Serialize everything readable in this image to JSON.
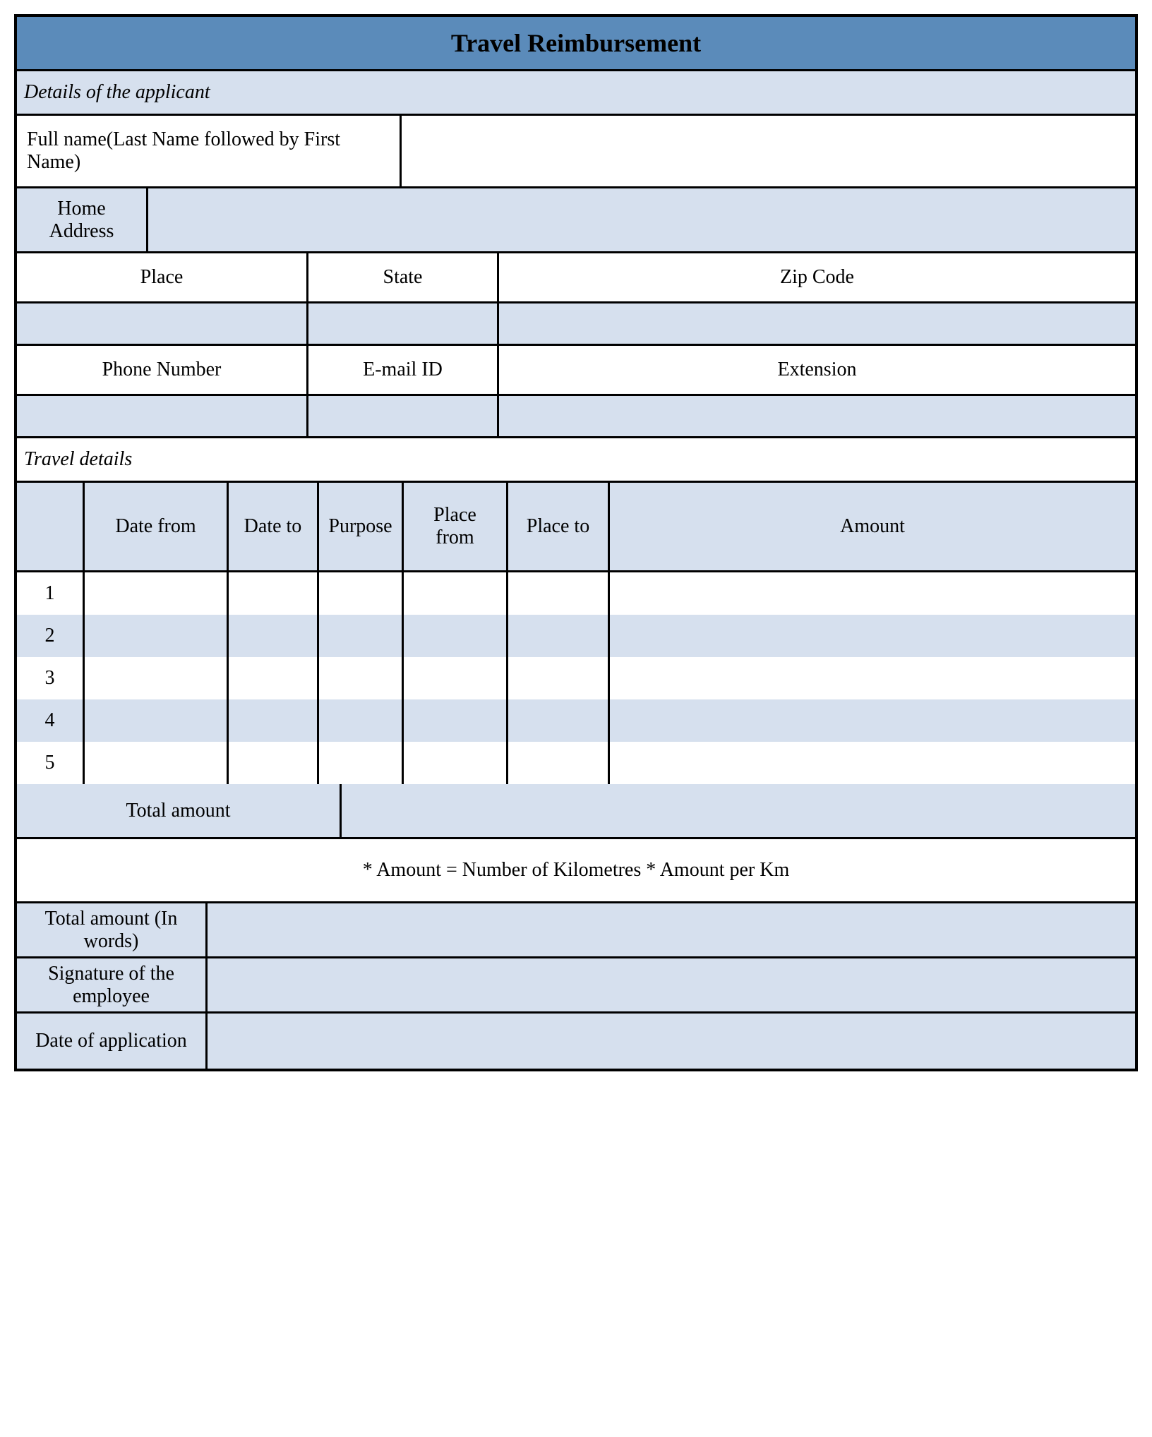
{
  "title": "Travel Reimbursement",
  "colors": {
    "header_bg": "#5b8bba",
    "light_bg": "#d6e0ee",
    "white": "#ffffff",
    "border": "#000000"
  },
  "sections": {
    "applicant_header": "Details of the applicant",
    "travel_header": "Travel details"
  },
  "applicant": {
    "fullname_label": "Full name(Last Name followed by First Name)",
    "fullname_value": "",
    "home_address_label": "Home Address",
    "home_address_value": "",
    "place_label": "Place",
    "state_label": "State",
    "zip_label": "Zip Code",
    "place_value": "",
    "state_value": "",
    "zip_value": "",
    "phone_label": "Phone Number",
    "email_label": "E-mail ID",
    "extension_label": "Extension",
    "phone_value": "",
    "email_value": "",
    "extension_value": ""
  },
  "travel_columns": {
    "rownum": "",
    "date_from": "Date from",
    "date_to": "Date to",
    "purpose": "Purpose",
    "place_from": "Place from",
    "place_to": "Place to",
    "amount": "Amount"
  },
  "travel_rows": [
    {
      "num": "1",
      "date_from": "",
      "date_to": "",
      "purpose": "",
      "place_from": "",
      "place_to": "",
      "amount": ""
    },
    {
      "num": "2",
      "date_from": "",
      "date_to": "",
      "purpose": "",
      "place_from": "",
      "place_to": "",
      "amount": ""
    },
    {
      "num": "3",
      "date_from": "",
      "date_to": "",
      "purpose": "",
      "place_from": "",
      "place_to": "",
      "amount": ""
    },
    {
      "num": "4",
      "date_from": "",
      "date_to": "",
      "purpose": "",
      "place_from": "",
      "place_to": "",
      "amount": ""
    },
    {
      "num": "5",
      "date_from": "",
      "date_to": "",
      "purpose": "",
      "place_from": "",
      "place_to": "",
      "amount": ""
    }
  ],
  "alt_row_bg": [
    "#ffffff",
    "#d6e0ee",
    "#ffffff",
    "#d6e0ee",
    "#ffffff"
  ],
  "totals": {
    "total_amount_label": "Total amount",
    "total_amount_value": "",
    "footnote": "* Amount = Number of Kilometres * Amount per Km",
    "total_words_label": "Total amount (In words)",
    "total_words_value": "",
    "signature_label": "Signature of the employee",
    "signature_value": "",
    "date_app_label": "Date of application",
    "date_app_value": ""
  }
}
